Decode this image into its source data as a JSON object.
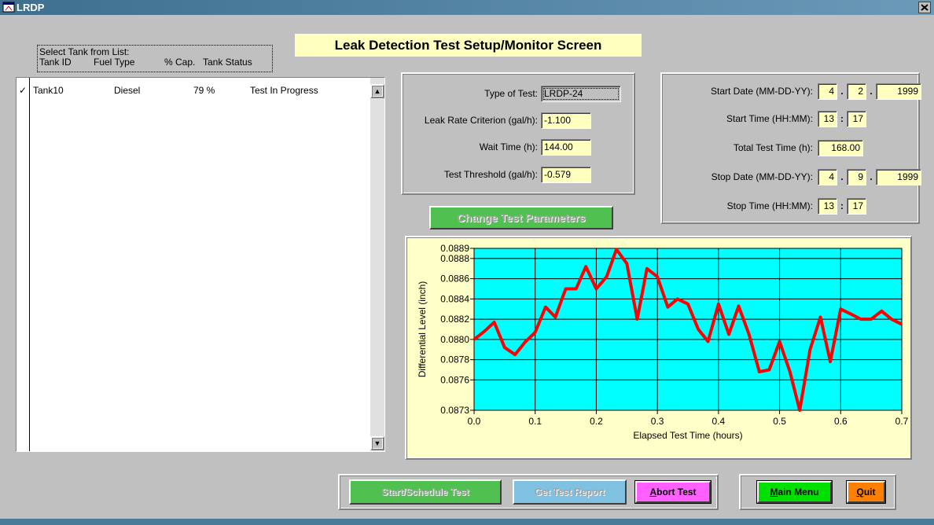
{
  "window": {
    "title": "LRDP"
  },
  "header": {
    "title": "Leak Detection Test Setup/Monitor Screen"
  },
  "tank_list": {
    "caption": "Select Tank from List:",
    "columns": [
      "Tank ID",
      "Fuel Type",
      "% Cap.",
      "Tank Status"
    ],
    "rows": [
      [
        "Tank10",
        "Diesel",
        "79 %",
        "Test In Progress"
      ]
    ]
  },
  "test_parameters": [
    {
      "label": "Type of Test:",
      "value": "LRDP-24"
    },
    {
      "label": "Leak Rate Criterion (gal/h):",
      "value": "-1.100"
    },
    {
      "label": "Wait Time (h):",
      "value": "144.00"
    },
    {
      "label": "Test Threshold (gal/h):",
      "value": "-0.579"
    }
  ],
  "schedule": [
    {
      "label": "Start Date (MM-DD-YY):",
      "fields": [
        "4",
        "2",
        "1999"
      ],
      "separators": [
        ".",
        "."
      ]
    },
    {
      "label": "Start Time (HH:MM):",
      "fields": [
        "13",
        "17"
      ],
      "separators": [
        ":"
      ]
    },
    {
      "label": "Total Test Time (h):",
      "fields": [
        "168.00"
      ],
      "separators": []
    },
    {
      "label": "Stop Date (MM-DD-YY):",
      "fields": [
        "4",
        "9",
        "1999"
      ],
      "separators": [
        ".",
        "."
      ]
    },
    {
      "label": "Stop Time (HH:MM):",
      "fields": [
        "13",
        "17"
      ],
      "separators": [
        ":"
      ]
    }
  ],
  "buttons": {
    "change_parameters": "Change Test Parameters",
    "start_schedule": "Start/Schedule Test",
    "get_report": "Get Test Report",
    "abort": "Abort Test",
    "main_menu": "Main Menu",
    "quit": "Quit"
  },
  "chart_data": {
    "type": "line",
    "xlabel": "Elapsed Test Time (hours)",
    "ylabel": "Differential Level (inch)",
    "color": "#ff0000",
    "x": [
      0.0,
      0.017,
      0.033,
      0.05,
      0.067,
      0.083,
      0.1,
      0.117,
      0.133,
      0.15,
      0.167,
      0.183,
      0.2,
      0.217,
      0.233,
      0.25,
      0.267,
      0.283,
      0.3,
      0.317,
      0.333,
      0.35,
      0.367,
      0.383,
      0.4,
      0.417,
      0.433,
      0.45,
      0.467,
      0.483,
      0.5,
      0.517,
      0.533,
      0.55,
      0.567,
      0.583,
      0.6,
      0.617,
      0.633,
      0.65,
      0.667,
      0.683,
      0.7
    ],
    "values": [
      0.088,
      0.08808,
      0.08817,
      0.08792,
      0.08785,
      0.08797,
      0.08807,
      0.08832,
      0.08822,
      0.0885,
      0.0885,
      0.08872,
      0.0885,
      0.08862,
      0.08889,
      0.08875,
      0.0882,
      0.0887,
      0.08862,
      0.08832,
      0.0884,
      0.08835,
      0.0881,
      0.08798,
      0.08835,
      0.08805,
      0.08833,
      0.08805,
      0.08768,
      0.0877,
      0.08798,
      0.08768,
      0.0873,
      0.0879,
      0.08822,
      0.08778,
      0.0883,
      0.08825,
      0.0882,
      0.0882,
      0.08828,
      0.0882,
      0.08815
    ],
    "xlim": [
      0,
      0.7
    ],
    "ylim": [
      0.0873,
      0.0889
    ],
    "xticks": [
      {
        "value": 0,
        "label": "0.0"
      },
      0.1,
      0.2,
      0.3,
      0.4,
      0.5,
      0.6,
      0.7
    ],
    "yticks": [
      0.0873,
      0.0876,
      0.0878,
      {
        "value": 0.088,
        "label": "0.0880"
      },
      0.0882,
      0.0884,
      0.0886,
      0.0888,
      0.0889
    ],
    "grid": true
  }
}
